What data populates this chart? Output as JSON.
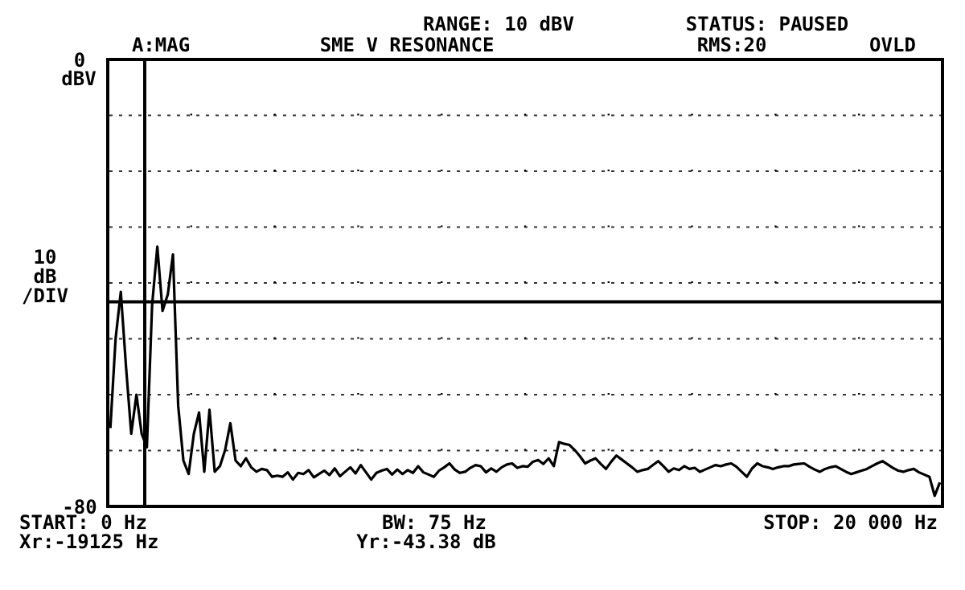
{
  "chart_data": {
    "type": "line",
    "title": "SME V RESONANCE",
    "annotations": [
      "dBV",
      "RANGE: 10 dBV",
      "STATUS: PAUSED",
      "A:MAG",
      "RMS:20",
      "OVLD",
      "10 dB /DIV",
      "START: 0 Hz",
      "BW: 75 Hz",
      "STOP: 20 000 Hz",
      "Xr:-19125 Hz",
      "Yr:-43.38 dB"
    ],
    "categories": [
      null,
      null,
      null,
      null,
      null,
      null,
      null,
      null,
      null,
      null,
      null,
      null,
      null,
      null,
      null,
      null,
      null,
      null,
      null,
      null,
      null,
      null,
      null,
      null,
      null,
      null,
      null,
      null,
      null,
      null,
      null,
      null,
      null,
      null,
      null,
      null,
      null,
      null,
      null,
      null,
      null,
      null,
      null,
      null,
      null,
      null,
      null,
      null,
      null,
      null,
      null,
      null,
      null,
      null,
      null,
      null,
      null,
      null,
      null,
      null,
      null,
      null,
      null,
      null,
      null,
      null,
      null,
      null,
      null,
      null,
      null,
      null,
      null,
      null,
      null,
      null,
      null,
      null,
      null,
      null,
      null,
      null,
      null,
      null,
      null,
      null,
      null,
      null,
      null,
      null,
      null,
      null,
      null,
      null,
      null,
      null,
      null,
      null,
      null,
      null,
      null,
      null,
      null,
      null,
      null,
      null,
      null,
      null,
      null,
      null,
      null,
      null,
      null,
      null,
      null,
      null,
      null,
      null,
      null,
      null,
      null,
      null,
      null,
      null,
      null,
      null,
      null,
      null,
      null,
      null,
      null,
      null,
      null,
      null,
      null,
      null,
      null,
      null,
      null,
      null,
      null,
      null,
      null,
      null,
      null,
      null,
      null,
      null,
      null,
      null,
      null,
      null,
      null,
      null,
      null,
      null,
      null,
      null,
      null,
      null
    ],
    "series": [
      {
        "color": "#000000",
        "values": [
          -66,
          -50,
          -41.6,
          -55,
          -67,
          -60,
          -67,
          -69.4,
          -44,
          -33.5,
          -45,
          -42.1,
          -34.9,
          -62,
          -71.8,
          -74.2,
          -67,
          -63.2,
          -73.8,
          -62.7,
          -73.8,
          -72.8,
          -69.9,
          -65.1,
          -71.8,
          -72.8,
          -71.4,
          -73.0,
          -73.8,
          -73.3,
          -73.5,
          -74.7,
          -74.5,
          -74.7,
          -73.9,
          -75.2,
          -74.0,
          -74.2,
          -73.5,
          -74.8,
          -74.2,
          -73.6,
          -74.4,
          -73.2,
          -74.6,
          -73.8,
          -73.0,
          -74.1,
          -72.6,
          -73.9,
          -75.2,
          -74.0,
          -73.6,
          -73.3,
          -74.3,
          -73.4,
          -74.2,
          -73.5,
          -74.0,
          -72.8,
          -73.9,
          -74.3,
          -74.7,
          -73.6,
          -73.0,
          -72.3,
          -73.4,
          -74.0,
          -73.8,
          -73.1,
          -72.6,
          -72.8,
          -73.9,
          -73.2,
          -73.8,
          -73.0,
          -72.5,
          -72.3,
          -73.1,
          -72.8,
          -72.9,
          -72.0,
          -71.7,
          -72.4,
          -71.4,
          -72.8,
          -68.5,
          -68.8,
          -69.0,
          -69.9,
          -71.0,
          -72.3,
          -71.8,
          -71.4,
          -72.4,
          -73.3,
          -72.0,
          -70.9,
          -71.6,
          -72.3,
          -73.0,
          -73.8,
          -73.5,
          -73.3,
          -72.6,
          -71.9,
          -72.8,
          -73.8,
          -73.2,
          -73.5,
          -72.8,
          -73.3,
          -73.1,
          -73.8,
          -73.4,
          -73.0,
          -72.6,
          -72.8,
          -72.5,
          -72.3,
          -72.9,
          -73.8,
          -74.7,
          -73.2,
          -72.3,
          -72.8,
          -73.0,
          -73.3,
          -73.0,
          -72.8,
          -72.8,
          -72.5,
          -72.4,
          -72.3,
          -72.9,
          -73.4,
          -73.8,
          -73.3,
          -73.0,
          -72.8,
          -73.3,
          -73.8,
          -74.2,
          -73.9,
          -73.6,
          -73.3,
          -72.8,
          -72.3,
          -71.9,
          -72.5,
          -73.1,
          -73.6,
          -73.8,
          -73.5,
          -73.3,
          -73.9,
          -74.3,
          -74.7,
          -78.1,
          -75.7
        ]
      }
    ],
    "ylim": [
      -80,
      0
    ],
    "yticks": [
      0,
      {
        "value": -10,
        "label": null
      },
      {
        "value": -20,
        "label": null
      },
      {
        "value": -30,
        "label": null
      },
      {
        "value": -40,
        "label": null
      },
      {
        "value": -50,
        "label": null
      },
      {
        "value": -60,
        "label": null
      },
      {
        "value": -70,
        "label": null
      },
      -80
    ],
    "tick_labels": "y",
    "grid": true,
    "line_style": "solid",
    "ref_lines": [
      {
        "axis": "y",
        "value": -43.38,
        "color": "#000000"
      }
    ]
  }
}
